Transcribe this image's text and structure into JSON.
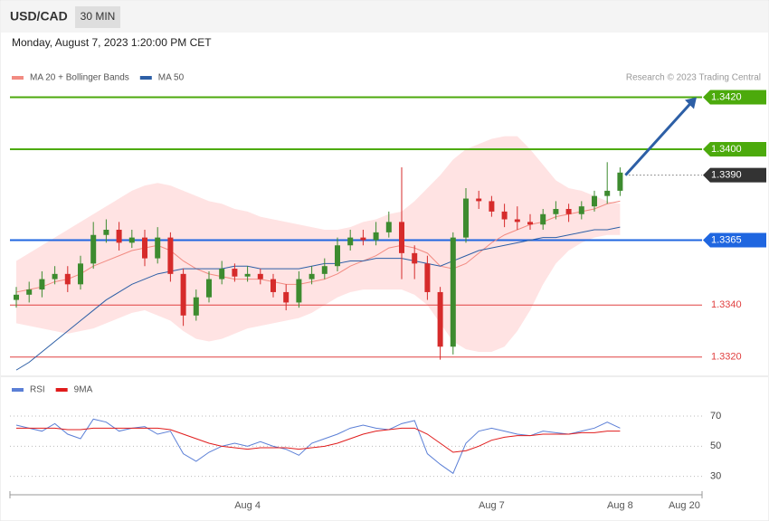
{
  "header": {
    "title": "USD/CAD",
    "timeframe": "30 MIN",
    "datetime": "Monday, August 7, 2023 1:20:00 PM CET",
    "credit": "Research © 2023 Trading Central"
  },
  "chart_data": [
    {
      "type": "candlestick",
      "categories": [
        null,
        null,
        null,
        null,
        null,
        null,
        null,
        null,
        null,
        null,
        null,
        null,
        null,
        null,
        null,
        null,
        null,
        null,
        "Aug 4",
        null,
        null,
        null,
        null,
        null,
        null,
        null,
        null,
        null,
        null,
        null,
        null,
        null,
        null,
        null,
        null,
        null,
        null,
        "Aug 7",
        null,
        null,
        null,
        null,
        null,
        null,
        null,
        null,
        null,
        "Aug 8",
        null,
        null,
        null,
        null,
        "Aug 20"
      ],
      "open": [
        1.3342,
        1.3344,
        1.3346,
        1.335,
        1.3352,
        1.3348,
        1.3356,
        1.3367,
        1.3369,
        1.3364,
        1.3366,
        1.3358,
        1.3366,
        1.3352,
        1.3336,
        1.3343,
        1.335,
        1.3354,
        1.3351,
        1.3352,
        1.335,
        1.3345,
        1.3341,
        1.335,
        1.3352,
        1.3355,
        1.3363,
        1.3366,
        1.3365,
        1.3368,
        1.3372,
        1.336,
        1.3356,
        1.3345,
        1.3324,
        1.3366,
        1.3381,
        1.338,
        1.3376,
        1.3373,
        1.3372,
        1.3371,
        1.3375,
        1.3377,
        1.3375,
        1.3378,
        1.3382,
        1.3384,
        null,
        null,
        null,
        null,
        null
      ],
      "high": [
        1.3347,
        1.3349,
        1.3353,
        1.3355,
        1.3355,
        1.3359,
        1.3372,
        1.3373,
        1.3372,
        1.3369,
        1.3369,
        1.337,
        1.3368,
        1.3354,
        1.3346,
        1.3353,
        1.3357,
        1.3356,
        1.3355,
        1.3354,
        1.3352,
        1.3348,
        1.3353,
        1.3355,
        1.3358,
        1.3366,
        1.3369,
        1.3369,
        1.3372,
        1.3376,
        1.3393,
        1.3363,
        1.3359,
        1.3347,
        1.3368,
        1.3385,
        1.3384,
        1.3382,
        1.3379,
        1.3378,
        1.3375,
        1.3377,
        1.338,
        1.3379,
        1.338,
        1.3384,
        1.3395,
        1.3393,
        null,
        null,
        null,
        null,
        null
      ],
      "low": [
        1.3339,
        1.3341,
        1.3343,
        1.3348,
        1.3345,
        1.3346,
        1.3354,
        1.3364,
        1.3361,
        1.3362,
        1.3355,
        1.3356,
        1.3349,
        1.3332,
        1.3334,
        1.3341,
        1.3348,
        1.3349,
        1.3349,
        1.3348,
        1.3343,
        1.3338,
        1.3339,
        1.3348,
        1.335,
        1.3353,
        1.3361,
        1.3363,
        1.3363,
        1.3366,
        1.335,
        1.335,
        1.3342,
        1.3319,
        1.3321,
        1.3364,
        1.3377,
        1.3374,
        1.337,
        1.3369,
        1.3369,
        1.3369,
        1.3373,
        1.3372,
        1.3373,
        1.3376,
        1.3379,
        1.3382,
        null,
        null,
        null,
        null,
        null
      ],
      "close": [
        1.3344,
        1.3346,
        1.335,
        1.3352,
        1.3348,
        1.3356,
        1.3367,
        1.3369,
        1.3364,
        1.3366,
        1.3358,
        1.3366,
        1.3352,
        1.3336,
        1.3343,
        1.335,
        1.3354,
        1.3351,
        1.3352,
        1.335,
        1.3345,
        1.3341,
        1.335,
        1.3352,
        1.3355,
        1.3363,
        1.3366,
        1.3365,
        1.3368,
        1.3372,
        1.336,
        1.3356,
        1.3345,
        1.3324,
        1.3366,
        1.3381,
        1.338,
        1.3376,
        1.3373,
        1.3372,
        1.3371,
        1.3375,
        1.3377,
        1.3375,
        1.3378,
        1.3382,
        1.3384,
        1.3391,
        null,
        null,
        null,
        null,
        null
      ],
      "up_color": "#3d8b2f",
      "down_color": "#d62b2b",
      "series": [
        {
          "name": "MA 20 + Bollinger Bands",
          "color": "#f28b82",
          "band_color": "#ffe3e3",
          "values": [
            1.3345,
            1.3346,
            1.3347,
            1.3349,
            1.335,
            1.3352,
            1.3355,
            1.3357,
            1.3359,
            1.3361,
            1.3362,
            1.3363,
            1.3361,
            1.3357,
            1.3354,
            1.3352,
            1.3351,
            1.335,
            1.335,
            1.335,
            1.3349,
            1.3348,
            1.3348,
            1.3349,
            1.335,
            1.3352,
            1.3355,
            1.3357,
            1.3359,
            1.3362,
            1.3363,
            1.3362,
            1.336,
            1.3355,
            1.3354,
            1.3356,
            1.336,
            1.3364,
            1.3367,
            1.3369,
            1.3371,
            1.3372,
            1.3374,
            1.3375,
            1.3376,
            1.3377,
            1.3379,
            1.338,
            null,
            null,
            null,
            null,
            null
          ],
          "upper": [
            1.3357,
            1.336,
            1.3363,
            1.3366,
            1.3369,
            1.3372,
            1.3375,
            1.3378,
            1.3381,
            1.3384,
            1.3386,
            1.3387,
            1.3386,
            1.3384,
            1.3382,
            1.338,
            1.3379,
            1.3377,
            1.3376,
            1.3374,
            1.3373,
            1.3372,
            1.3371,
            1.337,
            1.3369,
            1.3369,
            1.337,
            1.3372,
            1.3373,
            1.3375,
            1.3376,
            1.338,
            1.3385,
            1.339,
            1.3396,
            1.34,
            1.3402,
            1.3404,
            1.3405,
            1.3405,
            1.34,
            1.3394,
            1.3388,
            1.3385,
            1.3384,
            1.3382,
            1.338,
            1.3379,
            null,
            null,
            null,
            null,
            null
          ],
          "lower": [
            1.3333,
            1.3332,
            1.3331,
            1.333,
            1.3329,
            1.333,
            1.3331,
            1.3333,
            1.3335,
            1.3337,
            1.3338,
            1.3336,
            1.3334,
            1.333,
            1.3327,
            1.3326,
            1.3327,
            1.3329,
            1.3331,
            1.3332,
            1.3333,
            1.3334,
            1.3335,
            1.3337,
            1.334,
            1.3343,
            1.3345,
            1.3346,
            1.3346,
            1.3346,
            1.3346,
            1.3344,
            1.334,
            1.3333,
            1.3326,
            1.3323,
            1.3322,
            1.3322,
            1.3324,
            1.333,
            1.3338,
            1.3348,
            1.3356,
            1.3361,
            1.3364,
            1.3366,
            1.3367,
            1.3367,
            null,
            null,
            null,
            null,
            null
          ]
        },
        {
          "name": "MA 50",
          "color": "#2d5fa6",
          "values": [
            1.3315,
            1.3318,
            1.3322,
            1.3326,
            1.333,
            1.3334,
            1.3338,
            1.3342,
            1.3345,
            1.3348,
            1.335,
            1.3352,
            1.3353,
            1.3354,
            1.3354,
            1.3354,
            1.3354,
            1.3355,
            1.3355,
            1.3354,
            1.3354,
            1.3354,
            1.3354,
            1.3355,
            1.3356,
            1.3356,
            1.3357,
            1.3357,
            1.3358,
            1.3358,
            1.3358,
            1.3357,
            1.3356,
            1.3355,
            1.3357,
            1.3359,
            1.3361,
            1.3362,
            1.3363,
            1.3364,
            1.3365,
            1.3366,
            1.3366,
            1.3367,
            1.3368,
            1.3369,
            1.3369,
            1.337,
            null,
            null,
            null,
            null,
            null
          ]
        }
      ],
      "levels": [
        {
          "value": 1.342,
          "label": "1.3420",
          "color": "#4caa0c",
          "style": "solid",
          "box": true
        },
        {
          "value": 1.34,
          "label": "1.3400",
          "color": "#4caa0c",
          "style": "solid",
          "box": true
        },
        {
          "value": 1.339,
          "label": "1.3390",
          "color": "#333333",
          "style": "dotted",
          "box": true
        },
        {
          "value": 1.3365,
          "label": "1.3365",
          "color": "#1f66e0",
          "style": "solid",
          "box": true
        },
        {
          "value": 1.334,
          "label": "1.3340",
          "color": "#e04040",
          "style": "solid",
          "box": false
        },
        {
          "value": 1.332,
          "label": "1.3320",
          "color": "#e04040",
          "style": "solid",
          "box": false
        }
      ],
      "projection": [
        1.339,
        1.342
      ],
      "projection_color": "#2d5fa6",
      "ylim": [
        1.3314,
        1.3424
      ]
    },
    {
      "type": "line",
      "series": [
        {
          "name": "RSI",
          "color": "#5b7fd6",
          "values": [
            64,
            62,
            60,
            65,
            58,
            55,
            68,
            66,
            60,
            62,
            63,
            58,
            60,
            45,
            40,
            46,
            50,
            52,
            50,
            53,
            50,
            48,
            44,
            52,
            55,
            58,
            62,
            64,
            62,
            61,
            65,
            67,
            45,
            38,
            32,
            52,
            60,
            62,
            60,
            58,
            57,
            60,
            59,
            58,
            60,
            62,
            66,
            62,
            null,
            null,
            null,
            null,
            null
          ]
        },
        {
          "name": "9MA",
          "color": "#e01b1b",
          "values": [
            62,
            62,
            62,
            62,
            61,
            61,
            62,
            62,
            62,
            62,
            62,
            62,
            61,
            58,
            55,
            52,
            50,
            49,
            48,
            49,
            49,
            49,
            48,
            49,
            50,
            52,
            55,
            58,
            60,
            61,
            62,
            62,
            58,
            52,
            46,
            47,
            50,
            54,
            56,
            57,
            57,
            58,
            58,
            58,
            59,
            59,
            60,
            60,
            null,
            null,
            null,
            null,
            null
          ]
        }
      ],
      "ylim": [
        19,
        82
      ],
      "yticks": [
        30,
        50,
        70
      ],
      "grid": true
    }
  ]
}
